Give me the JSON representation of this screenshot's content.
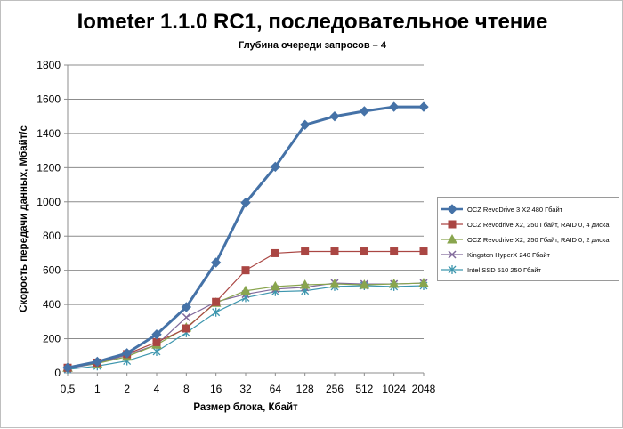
{
  "chart_data": {
    "type": "line",
    "title": "Iometer 1.1.0 RC1, последовательное чтение",
    "subtitle": "Глубина очереди запросов – 4",
    "xlabel": "Размер блока, Кбайт",
    "ylabel": "Скорость передачи данных, Мбайт/с",
    "categories": [
      "0,5",
      "1",
      "2",
      "4",
      "8",
      "16",
      "32",
      "64",
      "128",
      "256",
      "512",
      "1024",
      "2048"
    ],
    "ylim": [
      0,
      1800
    ],
    "yticks": [
      "0",
      "200",
      "400",
      "600",
      "800",
      "1000",
      "1200",
      "1400",
      "1600",
      "1800"
    ],
    "grid": "horizontal",
    "legend_position": "right",
    "series": [
      {
        "name": "OCZ RevoDrive 3 X2 480 Гбайт",
        "color": "#4572A7",
        "marker": "diamond",
        "values": [
          30,
          65,
          115,
          225,
          385,
          645,
          995,
          1205,
          1450,
          1500,
          1530,
          1555,
          1555
        ]
      },
      {
        "name": "OCZ Revodrive X2, 250 Гбайт, RAID 0, 4 диска",
        "color": "#AA4643",
        "marker": "square",
        "values": [
          30,
          60,
          110,
          180,
          260,
          415,
          600,
          700,
          710,
          710,
          710,
          710,
          710
        ]
      },
      {
        "name": "OCZ Revodrive X2, 250 Гбайт, RAID 0, 2 диска",
        "color": "#89A54E",
        "marker": "triangle",
        "values": [
          30,
          55,
          95,
          165,
          265,
          410,
          480,
          505,
          515,
          520,
          515,
          520,
          525
        ]
      },
      {
        "name": "Kingston HyperX 240 Гбайт",
        "color": "#80699B",
        "marker": "x",
        "values": [
          25,
          55,
          105,
          165,
          325,
          415,
          460,
          490,
          500,
          525,
          520,
          520,
          525
        ]
      },
      {
        "name": "Intel SSD 510 250 Гбайт",
        "color": "#3D96AE",
        "marker": "star",
        "values": [
          20,
          40,
          70,
          125,
          235,
          355,
          440,
          475,
          480,
          505,
          510,
          505,
          510
        ]
      }
    ]
  }
}
